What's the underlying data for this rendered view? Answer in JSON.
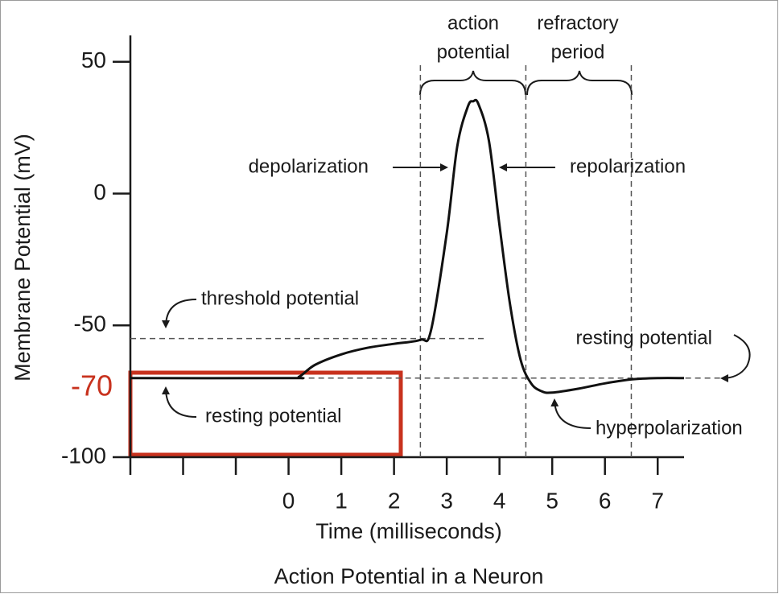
{
  "chart_data": {
    "type": "line",
    "title": "Action Potential in a Neuron",
    "x_label": "Time (milliseconds)",
    "y_label": "Membrane Potential (mV)",
    "xlim": [
      -3,
      7.5
    ],
    "ylim": [
      -100,
      60
    ],
    "xticks": [
      {
        "value": -3,
        "label": null
      },
      {
        "value": -2,
        "label": null
      },
      {
        "value": -1,
        "label": null
      },
      0,
      1,
      2,
      3,
      4,
      5,
      6,
      7
    ],
    "yticks": [
      -100,
      -50,
      0,
      50
    ],
    "series": [
      {
        "name": null,
        "color": "#111111",
        "x": [
          -3,
          0,
          0.2,
          0.5,
          1,
          1.5,
          2,
          2.5,
          2.7,
          3,
          3.2,
          3.4,
          3.5,
          3.6,
          3.8,
          4,
          4.2,
          4.4,
          4.6,
          4.8,
          5,
          5.5,
          6,
          6.5,
          7,
          7.5
        ],
        "values": [
          -70,
          -70,
          -69.5,
          -65,
          -61,
          -58.5,
          -57,
          -55.5,
          -52,
          -15,
          18,
          33,
          35,
          34,
          20,
          -12,
          -42,
          -63,
          -72,
          -75,
          -75.5,
          -74,
          -72,
          -70.5,
          -70,
          -70
        ]
      }
    ],
    "reference_lines": [
      {
        "axis": "y",
        "value": -55,
        "from": -3,
        "to": 3.7
      },
      {
        "axis": "y",
        "value": -70,
        "from": 0.2,
        "to": 8.2
      },
      {
        "axis": "x",
        "value": 2.5,
        "from": -100,
        "to": 50
      },
      {
        "axis": "x",
        "value": 4.5,
        "from": -100,
        "to": 50
      },
      {
        "axis": "x",
        "value": 6.5,
        "from": -100,
        "to": 50
      }
    ],
    "marked_level": {
      "value": -70,
      "color": "#c8321e"
    },
    "phase_labels": [
      [
        "action",
        "potential"
      ],
      [
        "refractory",
        "period"
      ]
    ],
    "annotations": [
      "depolarization",
      "repolarization",
      "threshold potential",
      "resting potential",
      "resting potential",
      "hyperpolarization"
    ]
  }
}
